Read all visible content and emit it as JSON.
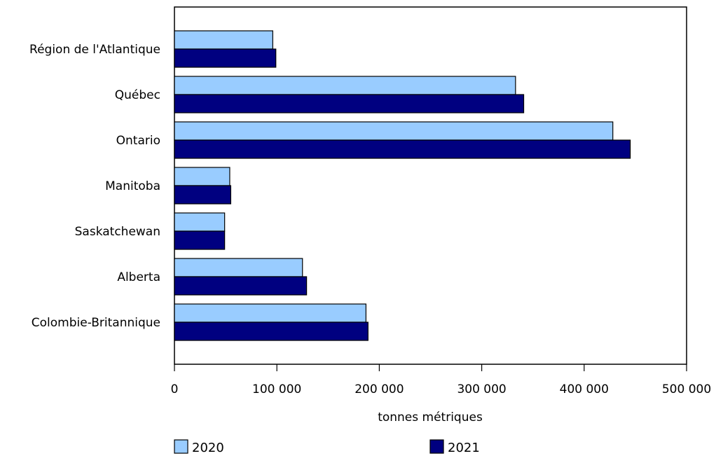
{
  "chart_data": {
    "type": "bar",
    "orientation": "horizontal",
    "categories": [
      "Région de l'Atlantique",
      "Québec",
      "Ontario",
      "Manitoba",
      "Saskatchewan",
      "Alberta",
      "Colombie-Britannique"
    ],
    "series": [
      {
        "name": "2020",
        "color": "#99ccff",
        "values": [
          96000,
          333000,
          428000,
          54000,
          49000,
          125000,
          187000
        ]
      },
      {
        "name": "2021",
        "color": "#000080",
        "values": [
          99000,
          341000,
          445000,
          55000,
          49000,
          129000,
          189000
        ]
      }
    ],
    "xlabel": "tonnes métriques",
    "xlim": [
      0,
      500000
    ],
    "xticks": [
      {
        "value": 0,
        "label": "0"
      },
      {
        "value": 100000,
        "label": "100 000"
      },
      {
        "value": 200000,
        "label": "200 000"
      },
      {
        "value": 300000,
        "label": "300 000"
      },
      {
        "value": 400000,
        "label": "400 000"
      },
      {
        "value": 500000,
        "label": "500 000"
      }
    ],
    "grid": false,
    "legend_position": "bottom"
  }
}
